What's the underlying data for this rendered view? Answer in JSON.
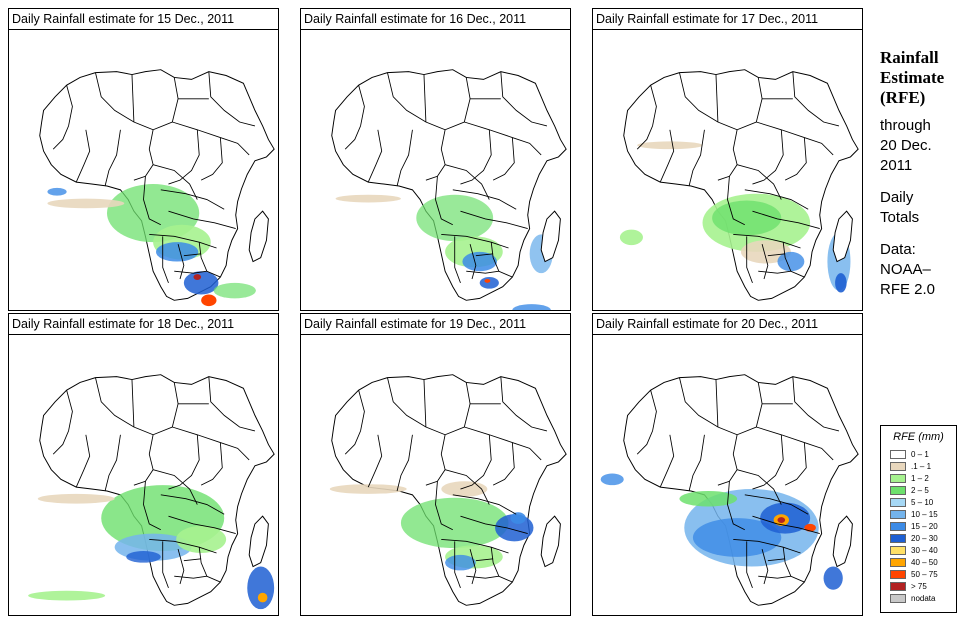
{
  "panels": [
    {
      "title": "Daily Rainfall estimate for  15 Dec., 2011"
    },
    {
      "title": "Daily Rainfall estimate for  16 Dec., 2011"
    },
    {
      "title": "Daily Rainfall estimate for  17 Dec., 2011"
    },
    {
      "title": "Daily Rainfall estimate for  18 Dec., 2011"
    },
    {
      "title": "Daily Rainfall estimate for  19 Dec., 2011"
    },
    {
      "title": "Daily Rainfall estimate for  20 Dec., 2011"
    }
  ],
  "side": {
    "heading": [
      "Rainfall",
      "Estimate",
      "(RFE)"
    ],
    "through": "through",
    "date": [
      "20 Dec.",
      "2011"
    ],
    "totals": [
      "Daily",
      "Totals"
    ],
    "data_label": "Data:",
    "source": [
      "NOAA–",
      "RFE 2.0"
    ]
  },
  "legend": {
    "title": "RFE (mm)",
    "items": [
      {
        "label": "0 – 1",
        "color": "#ffffff"
      },
      {
        "label": ".1 – 1",
        "color": "#e8d7bd"
      },
      {
        "label": "1 – 2",
        "color": "#a6f28f"
      },
      {
        "label": "2 – 5",
        "color": "#6de06d"
      },
      {
        "label": "5 – 10",
        "color": "#a6d8f5"
      },
      {
        "label": "10 – 15",
        "color": "#74b4ec"
      },
      {
        "label": "15 – 20",
        "color": "#3c8be6"
      },
      {
        "label": "20 – 30",
        "color": "#1e5fd2"
      },
      {
        "label": "30 – 40",
        "color": "#ffe066"
      },
      {
        "label": "40 – 50",
        "color": "#ffa500"
      },
      {
        "label": "50 – 75",
        "color": "#ff4500"
      },
      {
        "label": "> 75",
        "color": "#b22222"
      },
      {
        "label": "nodata",
        "color": "#c8c8c8"
      }
    ]
  }
}
